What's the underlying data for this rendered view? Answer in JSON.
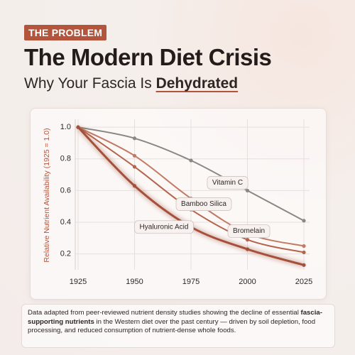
{
  "header": {
    "tag": "THE PROBLEM",
    "title": "The Modern Diet Crisis",
    "subtitle_prefix": "Why Your Fascia Is ",
    "subtitle_emphasis": "Dehydrated"
  },
  "chart_data": {
    "type": "line",
    "y_label": "Relative Nutrient Availability (1925 = 1.0)",
    "x": [
      1925,
      1950,
      1975,
      2000,
      2025
    ],
    "xlim": [
      1925,
      2025
    ],
    "xticks": [
      1925,
      1950,
      1975,
      2000,
      2025
    ],
    "ylim": [
      0.1,
      1.05
    ],
    "yticks": [
      {
        "value": 1,
        "label": "1.0"
      },
      0.8,
      0.6,
      0.4,
      0.2
    ],
    "grid": true,
    "series": [
      {
        "name": "Vitamin C",
        "color": "#8c8783",
        "values": [
          1,
          0.93,
          0.79,
          0.6,
          0.41
        ]
      },
      {
        "name": "Bamboo Silica",
        "color": "#c27a64",
        "values": [
          1,
          0.82,
          0.55,
          0.33,
          0.25
        ]
      },
      {
        "name": "Bromelain",
        "color": "#b4634d",
        "values": [
          1,
          0.75,
          0.48,
          0.29,
          0.21
        ]
      },
      {
        "name": "Hyaluronic Acid",
        "color": "#a4503a",
        "values": [
          1,
          0.63,
          0.37,
          0.23,
          0.13
        ]
      }
    ]
  },
  "footnote": {
    "text_before": "Data adapted from peer-reviewed nutrient density studies showing the decline of essential ",
    "bold": "fascia-supporting nutrients",
    "text_after": " in the Western diet over the past century — driven by soil depletion, food processing, and reduced consumption of nutrient-dense whole foods."
  }
}
